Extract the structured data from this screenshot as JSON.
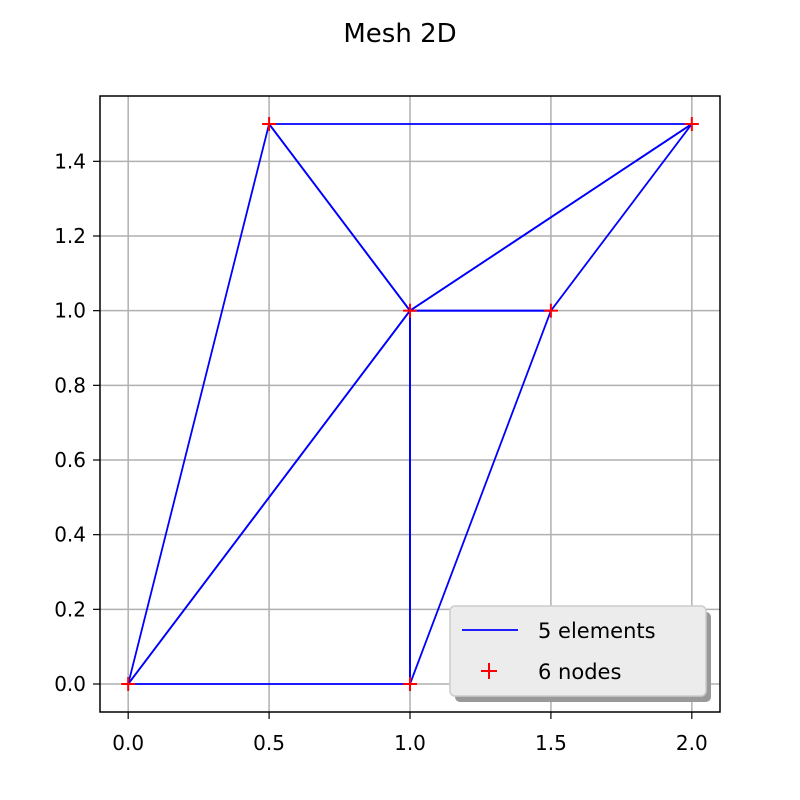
{
  "chart_data": {
    "type": "line",
    "title": "Mesh 2D",
    "xlim": [
      -0.1,
      2.1
    ],
    "ylim": [
      -0.075,
      1.575
    ],
    "x_ticks": [
      0.0,
      0.5,
      1.0,
      1.5,
      2.0
    ],
    "x_tick_labels": [
      "0.0",
      "0.5",
      "1.0",
      "1.5",
      "2.0"
    ],
    "y_ticks": [
      0.0,
      0.2,
      0.4,
      0.6,
      0.8,
      1.0,
      1.2,
      1.4
    ],
    "y_tick_labels": [
      "0.0",
      "0.2",
      "0.4",
      "0.6",
      "0.8",
      "1.0",
      "1.2",
      "1.4"
    ],
    "grid": true,
    "legend_position": "lower-right",
    "nodes": [
      {
        "x": 0.0,
        "y": 0.0
      },
      {
        "x": 1.0,
        "y": 0.0
      },
      {
        "x": 1.0,
        "y": 1.0
      },
      {
        "x": 0.5,
        "y": 1.5
      },
      {
        "x": 1.5,
        "y": 1.0
      },
      {
        "x": 2.0,
        "y": 1.5
      }
    ],
    "elements": [
      [
        0,
        1,
        2
      ],
      [
        0,
        2,
        3
      ],
      [
        1,
        4,
        2
      ],
      [
        2,
        4,
        5
      ],
      [
        2,
        5,
        3
      ]
    ],
    "series": [
      {
        "name": "5 elements",
        "kind": "line",
        "color": "#0000ff"
      },
      {
        "name": "6 nodes",
        "kind": "marker",
        "marker": "+",
        "color": "#ff0000"
      }
    ]
  }
}
